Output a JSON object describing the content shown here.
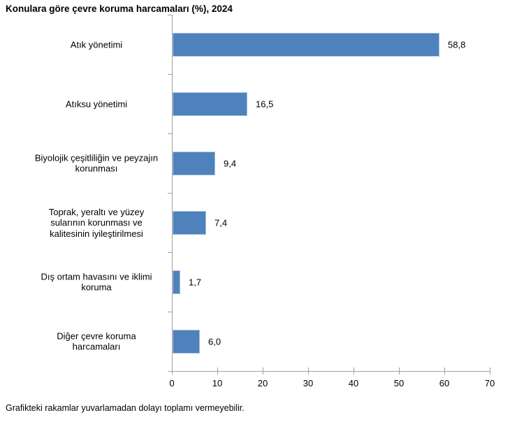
{
  "title": "Konulara göre çevre koruma harcamaları (%), 2024",
  "footnote": "Grafikteki rakamlar yuvarlamadan dolayı toplamı vermeyebilir.",
  "chart_data": {
    "type": "bar",
    "orientation": "horizontal",
    "title": "Konulara göre çevre koruma harcamaları (%), 2024",
    "categories": [
      "Atık yönetimi",
      "Atıksu yönetimi",
      "Biyolojik çeşitliliğin ve peyzajın\nkorunması",
      "Toprak, yeraltı ve yüzey\nsularının korunması ve\nkalitesinin iyileştirilmesi",
      "Dış ortam havasını ve iklimi\nkoruma",
      "Diğer çevre koruma\nharcamaları"
    ],
    "values": [
      58.8,
      16.5,
      9.4,
      7.4,
      1.7,
      6.0
    ],
    "value_labels": [
      "58,8",
      "16,5",
      "9,4",
      "7,4",
      "1,7",
      "6,0"
    ],
    "xlabel": "",
    "ylabel": "",
    "xlim": [
      0,
      70
    ],
    "x_ticks": [
      0,
      10,
      20,
      30,
      40,
      50,
      60,
      70
    ],
    "grid": false,
    "legend": "none",
    "bar_color": "#4f81bd",
    "bar_border_color": "#a7bfde",
    "axis_color": "#a0a0a0",
    "text_color": "#000000"
  }
}
